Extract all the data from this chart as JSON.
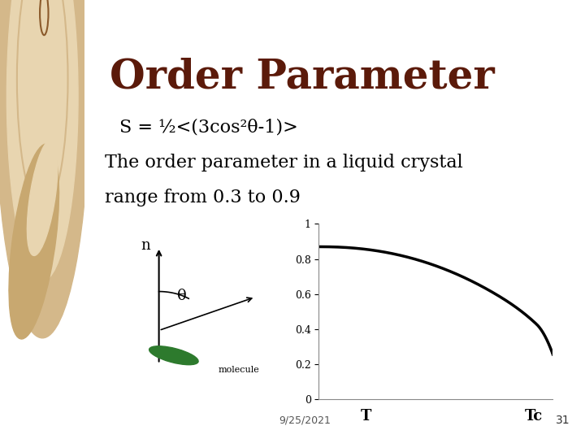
{
  "title": "Order Parameter",
  "title_color": "#5B1A0A",
  "formula": "S = ½<(3cos²θ-1)>",
  "description_line1": "The order parameter in a liquid crystal",
  "description_line2": "range from 0.3 to 0.9",
  "background_color": "#FFFFFF",
  "left_panel_color": "#E8D5B0",
  "date_text": "9/25/2021",
  "page_number": "31",
  "yticks": [
    0,
    0.2,
    0.4,
    0.6,
    0.8,
    1
  ],
  "plot_line_color": "#000000",
  "axis_color": "#888888",
  "plot_bg": "#FFFFFF"
}
